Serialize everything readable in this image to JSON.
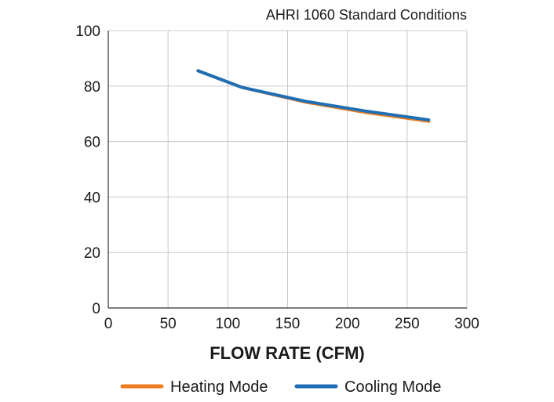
{
  "chart_data": {
    "type": "line",
    "title": "AHRI 1060 Standard Conditions",
    "xlabel": "FLOW RATE (CFM)",
    "ylabel": "",
    "xlim": [
      0,
      300
    ],
    "ylim": [
      0,
      100
    ],
    "xticks": [
      0,
      50,
      100,
      150,
      200,
      250,
      300
    ],
    "yticks": [
      0,
      20,
      40,
      60,
      80,
      100
    ],
    "grid": true,
    "legend_position": "bottom",
    "series": [
      {
        "name": "Heating Mode",
        "color": "#ee7d1f",
        "x": [
          75,
          112,
          165,
          215,
          268
        ],
        "y": [
          85.5,
          79.5,
          74.2,
          70.5,
          67.3
        ]
      },
      {
        "name": "Cooling Mode",
        "color": "#1f6fb4",
        "x": [
          75,
          112,
          165,
          215,
          268
        ],
        "y": [
          85.5,
          79.5,
          74.5,
          71.0,
          67.8
        ]
      }
    ]
  }
}
